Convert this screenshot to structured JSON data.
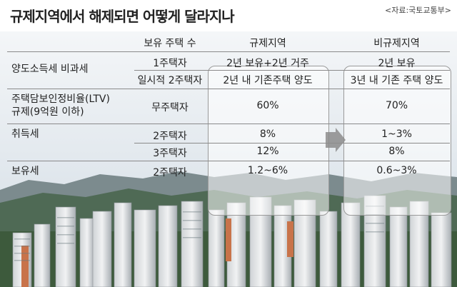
{
  "title": "규제지역에서 해제되면 어떻게 달라지나",
  "source": "<자료:국토교통부>",
  "headers": {
    "houses": "보유 주택 수",
    "regulated": "규제지역",
    "unregulated": "비규제지역"
  },
  "rows": [
    {
      "category": "양도소득세 비과세",
      "houses": "1주택자",
      "regulated": "2년 보유+2년 거주",
      "unregulated": "2년 보유"
    },
    {
      "category": "",
      "houses": "일시적 2주택자",
      "regulated": "2년 내 기존주택 양도",
      "unregulated": "3년 내 기존 주택 양도"
    },
    {
      "category": "주택담보인정비율(LTV) 규제(9억원 이하)",
      "category_line1": "주택담보인정비율(LTV)",
      "category_line2": "규제(9억원 이하)",
      "houses": "무주택자",
      "regulated": "60%",
      "unregulated": "70%"
    },
    {
      "category": "취득세",
      "houses": "2주택자",
      "regulated": "8%",
      "unregulated": "1~3%"
    },
    {
      "category": "",
      "houses": "3주택자",
      "regulated": "12%",
      "unregulated": "8%"
    },
    {
      "category": "보유세",
      "houses": "2주택자",
      "regulated": "1.2~6%",
      "unregulated": "0.6~3%"
    }
  ],
  "icons": {
    "transition": "right-arrow-icon"
  },
  "colors": {
    "arrow": "#8c8c8c",
    "title": "#222222"
  }
}
